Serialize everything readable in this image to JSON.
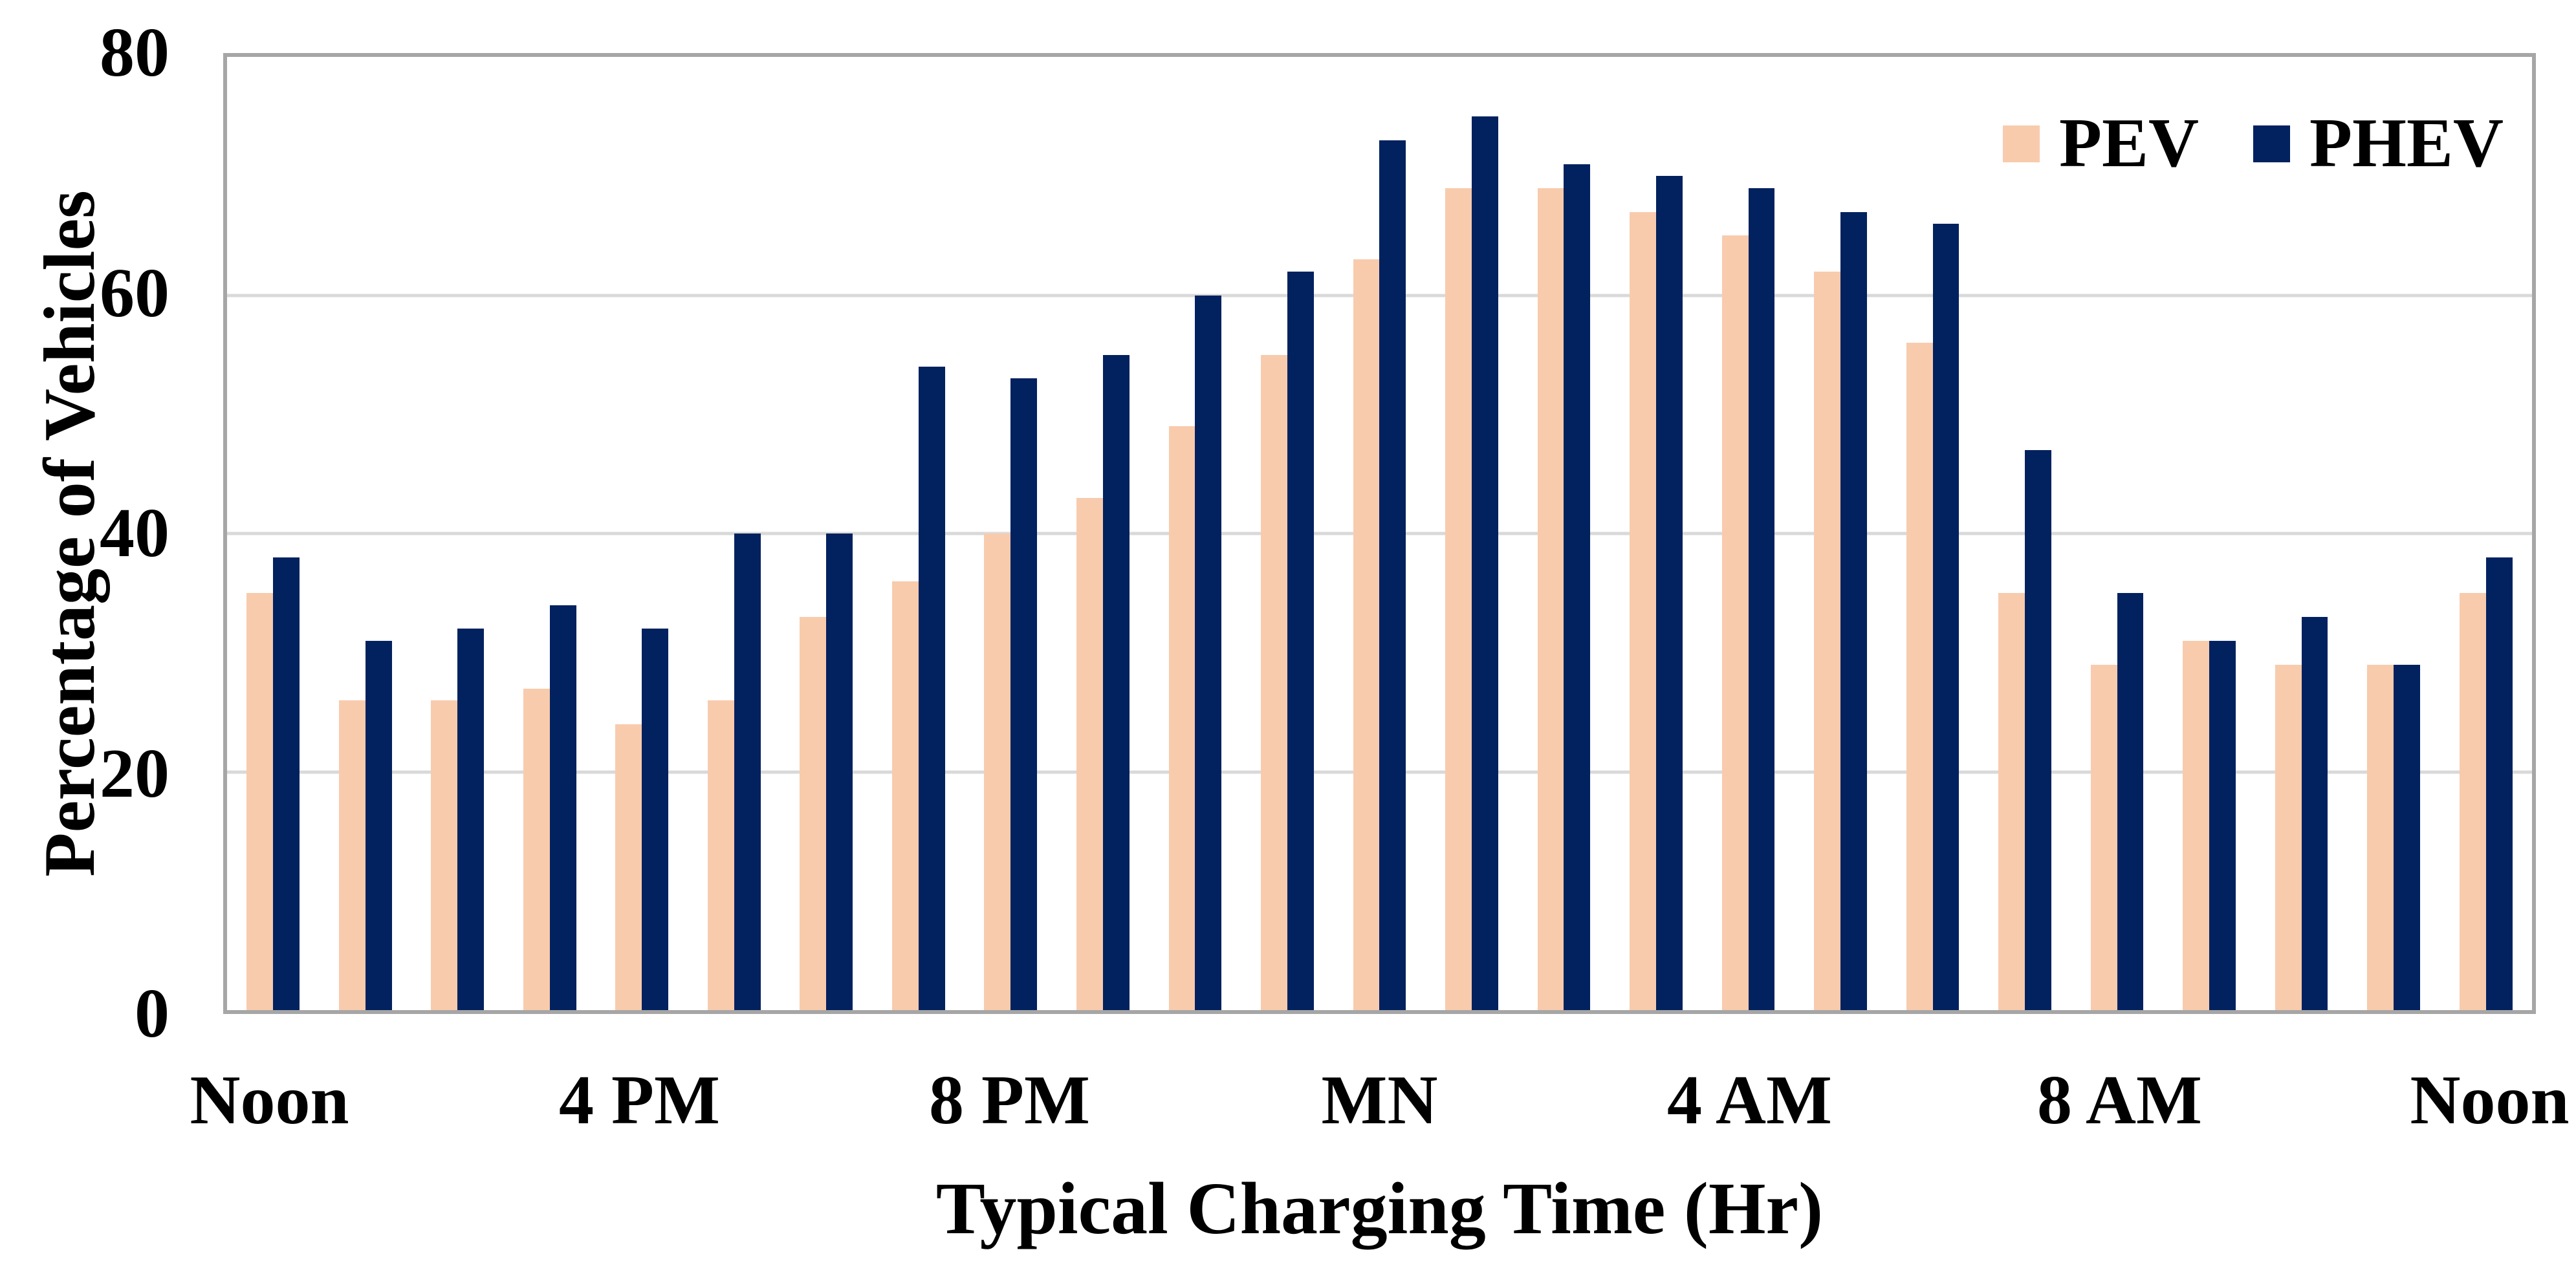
{
  "chart_data": {
    "type": "bar",
    "title": "",
    "xlabel": "Typical Charging Time (Hr)",
    "ylabel": "Percentage of Vehicles",
    "ylim": [
      0,
      80
    ],
    "yticks": [
      0,
      20,
      40,
      60,
      80
    ],
    "grid": "horizontal",
    "legend_position": "top-right-inside",
    "n_groups": 25,
    "x_tick_positions": [
      0,
      4,
      8,
      12,
      16,
      20,
      24
    ],
    "x_tick_labels": [
      "Noon",
      "4 PM",
      "8 PM",
      "MN",
      "4 AM",
      "8 AM",
      "Noon"
    ],
    "series": [
      {
        "name": "PEV",
        "color": "#F8CBAD",
        "values": [
          35,
          26,
          26,
          27,
          24,
          26,
          33,
          36,
          40,
          43,
          49,
          55,
          63,
          69,
          69,
          67,
          65,
          62,
          56,
          35,
          29,
          31,
          29,
          29,
          35
        ]
      },
      {
        "name": "PHEV",
        "color": "#02215F",
        "values": [
          38,
          31,
          32,
          34,
          32,
          40,
          40,
          54,
          53,
          55,
          60,
          62,
          73,
          75,
          71,
          70,
          69,
          67,
          66,
          47,
          35,
          31,
          33,
          29,
          38
        ]
      }
    ],
    "style": {
      "axis_border_color": "#A6A6A6",
      "gridline_color": "#D9D9D9",
      "background_color": "#FFFFFF",
      "text_color": "#000000"
    }
  }
}
